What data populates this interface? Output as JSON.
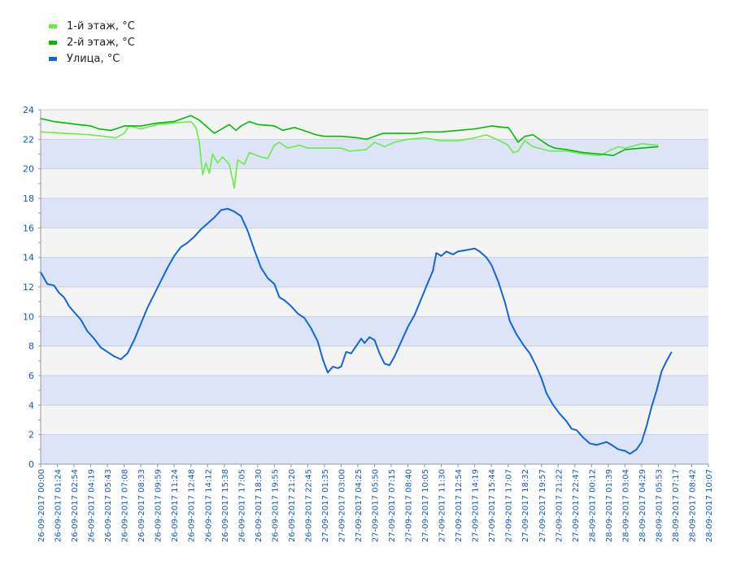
{
  "chart_data": {
    "type": "line",
    "title": "",
    "xlabel": "",
    "ylabel": "",
    "ylim": [
      0,
      24
    ],
    "yticks": [
      0,
      2,
      4,
      6,
      8,
      10,
      12,
      14,
      16,
      18,
      20,
      22,
      24
    ],
    "x_tick_labels": [
      "26-09-2017 00:00",
      "26-09-2017 01:24",
      "26-09-2017 02:54",
      "26-09-2017 04:19",
      "26-09-2017 05:43",
      "26-09-2017 07:08",
      "26-09-2017 08:33",
      "26-09-2017 09:59",
      "26-09-2017 11:24",
      "26-09-2017 12:48",
      "26-09-2017 14:12",
      "26-09-2017 15:38",
      "26-09-2017 17:05",
      "26-09-2017 18:30",
      "26-09-2017 19:55",
      "26-09-2017 21:20",
      "26-09-2017 22:45",
      "27-09-2017 01:35",
      "27-09-2017 03:00",
      "27-09-2017 04:25",
      "27-09-2017 05:50",
      "27-09-2017 07:15",
      "27-09-2017 08:40",
      "27-09-2017 10:05",
      "27-09-2017 11:30",
      "27-09-2017 12:54",
      "27-09-2017 14:19",
      "27-09-2017 15:44",
      "27-09-2017 17:07",
      "27-09-2017 18:32",
      "27-09-2017 19:57",
      "27-09-2017 21:22",
      "27-09-2017 22:47",
      "28-09-2017 00:12",
      "28-09-2017 01:39",
      "28-09-2017 03:04",
      "28-09-2017 04:29",
      "28-09-2017 05:53",
      "28-09-2017 07:17",
      "28-09-2017 08:42",
      "28-09-2017 10:07"
    ],
    "grid": true,
    "legend_position": "top-left",
    "series": [
      {
        "name": "1-й этаж, °С",
        "color": "#66ee44",
        "points": [
          [
            0,
            22.5
          ],
          [
            1.5,
            22.4
          ],
          [
            3,
            22.3
          ],
          [
            4.5,
            22.1
          ],
          [
            5,
            22.4
          ],
          [
            5.3,
            22.9
          ],
          [
            6,
            22.7
          ],
          [
            7,
            23.0
          ],
          [
            8,
            23.1
          ],
          [
            9,
            23.2
          ],
          [
            9.3,
            22.8
          ],
          [
            9.5,
            21.8
          ],
          [
            9.7,
            19.6
          ],
          [
            9.9,
            20.4
          ],
          [
            10.1,
            19.7
          ],
          [
            10.3,
            21.0
          ],
          [
            10.6,
            20.4
          ],
          [
            10.9,
            20.8
          ],
          [
            11.3,
            20.3
          ],
          [
            11.6,
            18.7
          ],
          [
            11.8,
            20.6
          ],
          [
            12.2,
            20.3
          ],
          [
            12.5,
            21.1
          ],
          [
            13.2,
            20.8
          ],
          [
            13.6,
            20.7
          ],
          [
            14,
            21.6
          ],
          [
            14.3,
            21.8
          ],
          [
            14.8,
            21.4
          ],
          [
            15.5,
            21.6
          ],
          [
            16,
            21.4
          ],
          [
            17,
            21.4
          ],
          [
            18,
            21.4
          ],
          [
            18.5,
            21.2
          ],
          [
            19.5,
            21.3
          ],
          [
            20,
            21.8
          ],
          [
            20.6,
            21.5
          ],
          [
            21.2,
            21.8
          ],
          [
            22,
            22.0
          ],
          [
            23,
            22.1
          ],
          [
            24,
            21.9
          ],
          [
            25,
            21.9
          ],
          [
            26,
            22.1
          ],
          [
            26.7,
            22.3
          ],
          [
            27.5,
            21.9
          ],
          [
            28,
            21.6
          ],
          [
            28.3,
            21.1
          ],
          [
            28.6,
            21.2
          ],
          [
            29,
            21.9
          ],
          [
            29.5,
            21.5
          ],
          [
            30.5,
            21.2
          ],
          [
            31.5,
            21.2
          ],
          [
            32.5,
            21.0
          ],
          [
            33.5,
            20.9
          ],
          [
            34.2,
            21.3
          ],
          [
            34.6,
            21.5
          ],
          [
            35,
            21.4
          ],
          [
            36,
            21.7
          ],
          [
            37,
            21.6
          ]
        ]
      },
      {
        "name": "2-й этаж, °С",
        "color": "#00bb00",
        "points": [
          [
            0,
            23.4
          ],
          [
            0.8,
            23.2
          ],
          [
            1.5,
            23.1
          ],
          [
            2.2,
            23.0
          ],
          [
            3,
            22.9
          ],
          [
            3.5,
            22.7
          ],
          [
            4.2,
            22.6
          ],
          [
            4.5,
            22.7
          ],
          [
            5,
            22.9
          ],
          [
            6,
            22.9
          ],
          [
            7,
            23.1
          ],
          [
            8,
            23.2
          ],
          [
            8.5,
            23.4
          ],
          [
            9,
            23.6
          ],
          [
            9.5,
            23.3
          ],
          [
            10,
            22.8
          ],
          [
            10.4,
            22.4
          ],
          [
            10.7,
            22.6
          ],
          [
            11.3,
            23.0
          ],
          [
            11.7,
            22.6
          ],
          [
            12,
            22.9
          ],
          [
            12.5,
            23.2
          ],
          [
            13,
            23.0
          ],
          [
            14,
            22.9
          ],
          [
            14.5,
            22.6
          ],
          [
            15.2,
            22.8
          ],
          [
            16,
            22.5
          ],
          [
            16.5,
            22.3
          ],
          [
            17,
            22.2
          ],
          [
            18,
            22.2
          ],
          [
            19,
            22.1
          ],
          [
            19.5,
            22.0
          ],
          [
            20,
            22.2
          ],
          [
            20.5,
            22.4
          ],
          [
            21.5,
            22.4
          ],
          [
            22.5,
            22.4
          ],
          [
            23,
            22.5
          ],
          [
            24,
            22.5
          ],
          [
            25,
            22.6
          ],
          [
            26,
            22.7
          ],
          [
            27,
            22.9
          ],
          [
            27.8,
            22.8
          ],
          [
            28,
            22.8
          ],
          [
            28.2,
            22.5
          ],
          [
            28.6,
            21.8
          ],
          [
            29,
            22.2
          ],
          [
            29.5,
            22.3
          ],
          [
            30,
            21.9
          ],
          [
            30.4,
            21.6
          ],
          [
            30.8,
            21.4
          ],
          [
            31.5,
            21.3
          ],
          [
            32.5,
            21.1
          ],
          [
            33.5,
            21.0
          ],
          [
            34.3,
            20.9
          ],
          [
            35,
            21.3
          ],
          [
            36,
            21.4
          ],
          [
            37,
            21.5
          ]
        ]
      },
      {
        "name": "Улица, °С",
        "color": "#1166dd",
        "points": [
          [
            0,
            13.0
          ],
          [
            0.4,
            12.2
          ],
          [
            0.8,
            12.1
          ],
          [
            1.1,
            11.6
          ],
          [
            1.4,
            11.3
          ],
          [
            1.7,
            10.7
          ],
          [
            2,
            10.3
          ],
          [
            2.4,
            9.8
          ],
          [
            2.8,
            9.0
          ],
          [
            3.2,
            8.5
          ],
          [
            3.6,
            7.9
          ],
          [
            4,
            7.6
          ],
          [
            4.4,
            7.3
          ],
          [
            4.8,
            7.1
          ],
          [
            5.2,
            7.5
          ],
          [
            5.6,
            8.4
          ],
          [
            6,
            9.5
          ],
          [
            6.4,
            10.6
          ],
          [
            6.8,
            11.5
          ],
          [
            7.2,
            12.4
          ],
          [
            7.6,
            13.3
          ],
          [
            8,
            14.1
          ],
          [
            8.4,
            14.7
          ],
          [
            8.8,
            15.0
          ],
          [
            9.2,
            15.4
          ],
          [
            9.6,
            15.9
          ],
          [
            10,
            16.3
          ],
          [
            10.4,
            16.7
          ],
          [
            10.8,
            17.2
          ],
          [
            11.2,
            17.3
          ],
          [
            11.6,
            17.1
          ],
          [
            12,
            16.8
          ],
          [
            12.4,
            15.8
          ],
          [
            12.8,
            14.5
          ],
          [
            13.2,
            13.3
          ],
          [
            13.6,
            12.6
          ],
          [
            14,
            12.2
          ],
          [
            14.3,
            11.3
          ],
          [
            14.6,
            11.1
          ],
          [
            15,
            10.7
          ],
          [
            15.4,
            10.2
          ],
          [
            15.8,
            9.9
          ],
          [
            16.2,
            9.2
          ],
          [
            16.6,
            8.3
          ],
          [
            16.9,
            7.1
          ],
          [
            17.2,
            6.2
          ],
          [
            17.5,
            6.6
          ],
          [
            17.8,
            6.5
          ],
          [
            18,
            6.6
          ],
          [
            18.3,
            7.6
          ],
          [
            18.6,
            7.5
          ],
          [
            18.9,
            8.0
          ],
          [
            19.2,
            8.5
          ],
          [
            19.4,
            8.2
          ],
          [
            19.7,
            8.6
          ],
          [
            20,
            8.4
          ],
          [
            20.3,
            7.5
          ],
          [
            20.6,
            6.8
          ],
          [
            20.9,
            6.7
          ],
          [
            21.2,
            7.3
          ],
          [
            21.6,
            8.3
          ],
          [
            22,
            9.3
          ],
          [
            22.4,
            10.1
          ],
          [
            22.8,
            11.2
          ],
          [
            23.2,
            12.3
          ],
          [
            23.5,
            13.1
          ],
          [
            23.7,
            14.3
          ],
          [
            24,
            14.1
          ],
          [
            24.3,
            14.4
          ],
          [
            24.7,
            14.2
          ],
          [
            25,
            14.4
          ],
          [
            25.5,
            14.5
          ],
          [
            26,
            14.6
          ],
          [
            26.3,
            14.4
          ],
          [
            26.7,
            14.0
          ],
          [
            27,
            13.5
          ],
          [
            27.4,
            12.4
          ],
          [
            27.8,
            11.0
          ],
          [
            28.1,
            9.7
          ],
          [
            28.5,
            8.8
          ],
          [
            28.9,
            8.1
          ],
          [
            29.3,
            7.5
          ],
          [
            29.7,
            6.6
          ],
          [
            30,
            5.8
          ],
          [
            30.3,
            4.8
          ],
          [
            30.7,
            4.0
          ],
          [
            31.1,
            3.4
          ],
          [
            31.5,
            2.9
          ],
          [
            31.8,
            2.4
          ],
          [
            32.1,
            2.3
          ],
          [
            32.5,
            1.8
          ],
          [
            32.9,
            1.4
          ],
          [
            33.3,
            1.3
          ],
          [
            33.6,
            1.4
          ],
          [
            33.9,
            1.5
          ],
          [
            34.2,
            1.3
          ],
          [
            34.6,
            1.0
          ],
          [
            35,
            0.9
          ],
          [
            35.3,
            0.7
          ],
          [
            35.7,
            1.0
          ],
          [
            36,
            1.5
          ],
          [
            36.3,
            2.6
          ],
          [
            36.6,
            3.9
          ],
          [
            36.9,
            5.0
          ],
          [
            37.2,
            6.3
          ],
          [
            37.5,
            7.0
          ],
          [
            37.8,
            7.6
          ]
        ]
      }
    ]
  }
}
